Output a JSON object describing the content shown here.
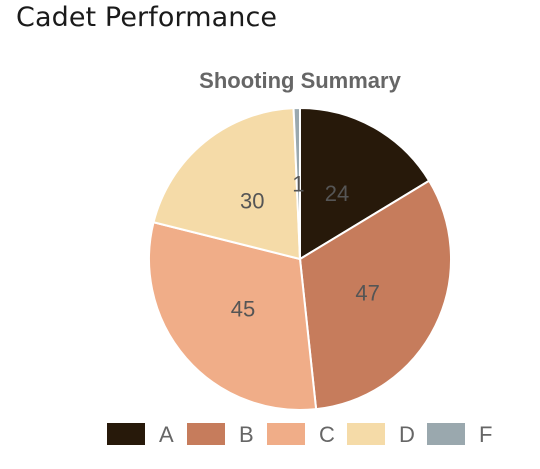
{
  "page": {
    "title": "Cadet Performance"
  },
  "chart_data": {
    "type": "pie",
    "title": "Shooting Summary",
    "categories": [
      "A",
      "B",
      "C",
      "D",
      "F"
    ],
    "values": [
      24,
      47,
      45,
      30,
      1
    ],
    "colors": [
      "#27190a",
      "#c67c5c",
      "#f0ad88",
      "#f5dba8",
      "#9aa8ae"
    ],
    "data_labels": [
      "24",
      "47",
      "45",
      "30",
      "1"
    ],
    "legend": {
      "position": "bottom",
      "entries": [
        "A",
        "B",
        "C",
        "D",
        "F"
      ]
    }
  }
}
